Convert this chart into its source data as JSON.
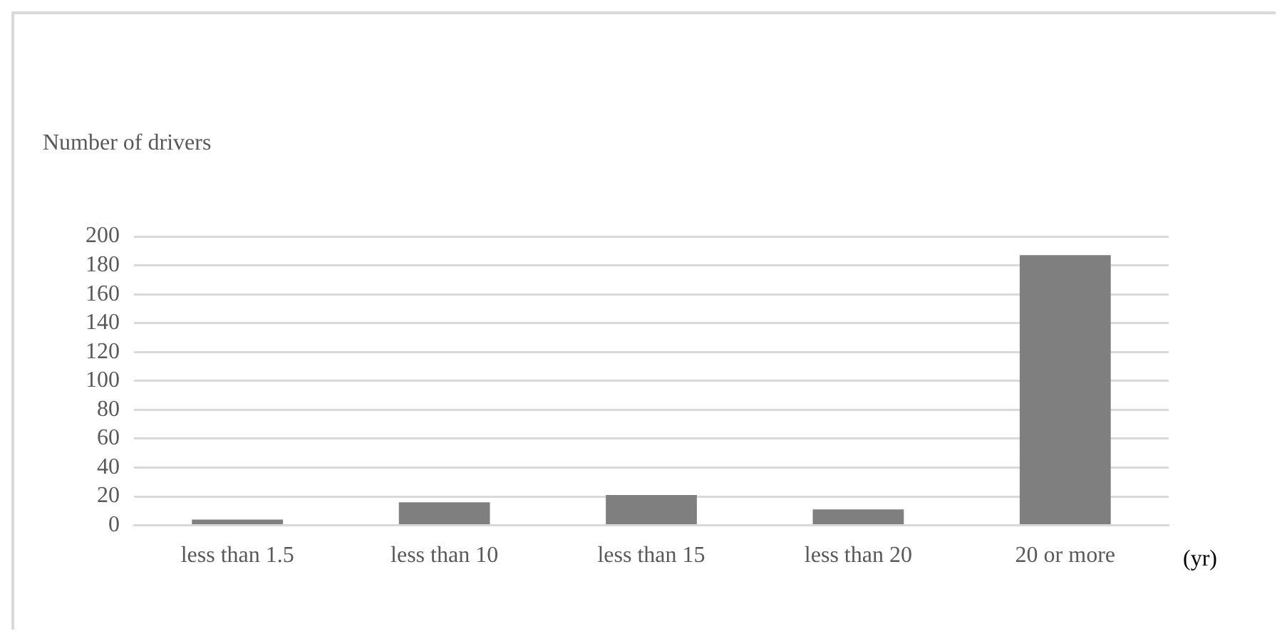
{
  "chart_data": {
    "type": "bar",
    "ylabel": "Number of drivers",
    "xlabel": "(yr)",
    "categories": [
      "less than 1.5",
      "less than 10",
      "less than 15",
      "less than 20",
      "20 or more"
    ],
    "values": [
      4,
      16,
      21,
      11,
      187
    ],
    "color": "#7f7f7f",
    "ylim": [
      0,
      200
    ],
    "yticks": [
      0,
      20,
      40,
      60,
      80,
      100,
      120,
      140,
      160,
      180,
      200
    ],
    "grid": "y"
  }
}
